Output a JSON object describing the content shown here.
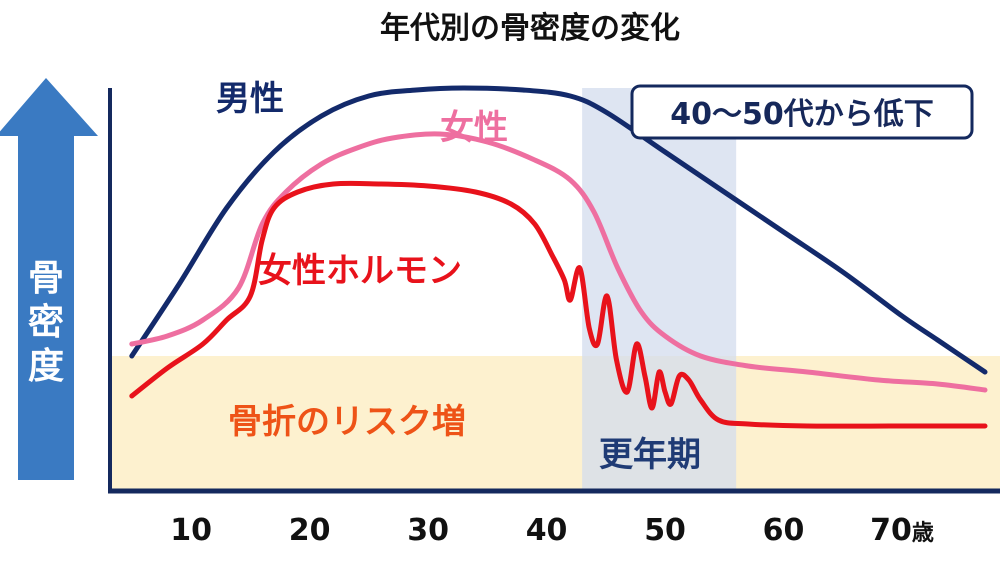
{
  "chart_data": {
    "type": "line",
    "title": "年代別の骨密度の変化",
    "ylabel": "骨密度",
    "x_ticks": [
      10,
      20,
      30,
      40,
      50,
      60,
      70
    ],
    "x_unit": "歳",
    "xlim": [
      4,
      77
    ],
    "ylim": [
      0,
      100
    ],
    "grid": false,
    "series": [
      {
        "name": "男性",
        "color": "#132a6b",
        "points": [
          [
            5,
            33
          ],
          [
            9,
            51
          ],
          [
            13,
            70
          ],
          [
            17,
            84
          ],
          [
            21,
            93
          ],
          [
            25,
            98
          ],
          [
            29,
            99.5
          ],
          [
            33,
            100
          ],
          [
            38,
            99.5
          ],
          [
            42,
            98
          ],
          [
            45,
            94
          ],
          [
            50,
            84
          ],
          [
            55,
            74
          ],
          [
            60,
            64
          ],
          [
            65,
            54
          ],
          [
            70,
            43
          ],
          [
            73,
            37
          ],
          [
            77,
            29
          ]
        ]
      },
      {
        "name": "女性",
        "color": "#ee6fa0",
        "points": [
          [
            5,
            36
          ],
          [
            8,
            38
          ],
          [
            11,
            42
          ],
          [
            14,
            50
          ],
          [
            16,
            66
          ],
          [
            18,
            74
          ],
          [
            21,
            81
          ],
          [
            24,
            85
          ],
          [
            27,
            87.5
          ],
          [
            31,
            88.5
          ],
          [
            35,
            86.5
          ],
          [
            39,
            82
          ],
          [
            42,
            77
          ],
          [
            44,
            69
          ],
          [
            46,
            55
          ],
          [
            48,
            44
          ],
          [
            50,
            38
          ],
          [
            53,
            33
          ],
          [
            57,
            30.5
          ],
          [
            62,
            29
          ],
          [
            68,
            27
          ],
          [
            73,
            26
          ],
          [
            77,
            24.5
          ]
        ]
      },
      {
        "name": "女性ホルモン",
        "color": "#e8121b",
        "points": [
          [
            5,
            23
          ],
          [
            8,
            30
          ],
          [
            11,
            36
          ],
          [
            13,
            42
          ],
          [
            15,
            48
          ],
          [
            16,
            62
          ],
          [
            17,
            70
          ],
          [
            19,
            74
          ],
          [
            22,
            76
          ],
          [
            26,
            76
          ],
          [
            30,
            75.5
          ],
          [
            34,
            74
          ],
          [
            37,
            71
          ],
          [
            39,
            66
          ],
          [
            40.5,
            58
          ],
          [
            41.5,
            52
          ],
          [
            42,
            47
          ],
          [
            42.8,
            55
          ],
          [
            43.6,
            40
          ],
          [
            44.3,
            36
          ],
          [
            45.1,
            48
          ],
          [
            45.9,
            32
          ],
          [
            46.8,
            24
          ],
          [
            47.6,
            36
          ],
          [
            48.3,
            28
          ],
          [
            48.9,
            20
          ],
          [
            49.5,
            29
          ],
          [
            50,
            24
          ],
          [
            50.5,
            21
          ],
          [
            51.2,
            28
          ],
          [
            52,
            27
          ],
          [
            53,
            22
          ],
          [
            54.5,
            17
          ],
          [
            57,
            16
          ],
          [
            62,
            15.5
          ],
          [
            70,
            15.5
          ],
          [
            77,
            15.5
          ]
        ]
      }
    ],
    "regions": [
      {
        "label": "骨折のリスク増",
        "axis": "y",
        "from": 0,
        "to": 33,
        "color": "#fdf1cf"
      },
      {
        "label": "更年期",
        "axis": "x",
        "from": 43,
        "to": 56,
        "color": "#d3dced"
      }
    ],
    "annotations": [
      {
        "text": "40〜50代から低下"
      }
    ]
  }
}
